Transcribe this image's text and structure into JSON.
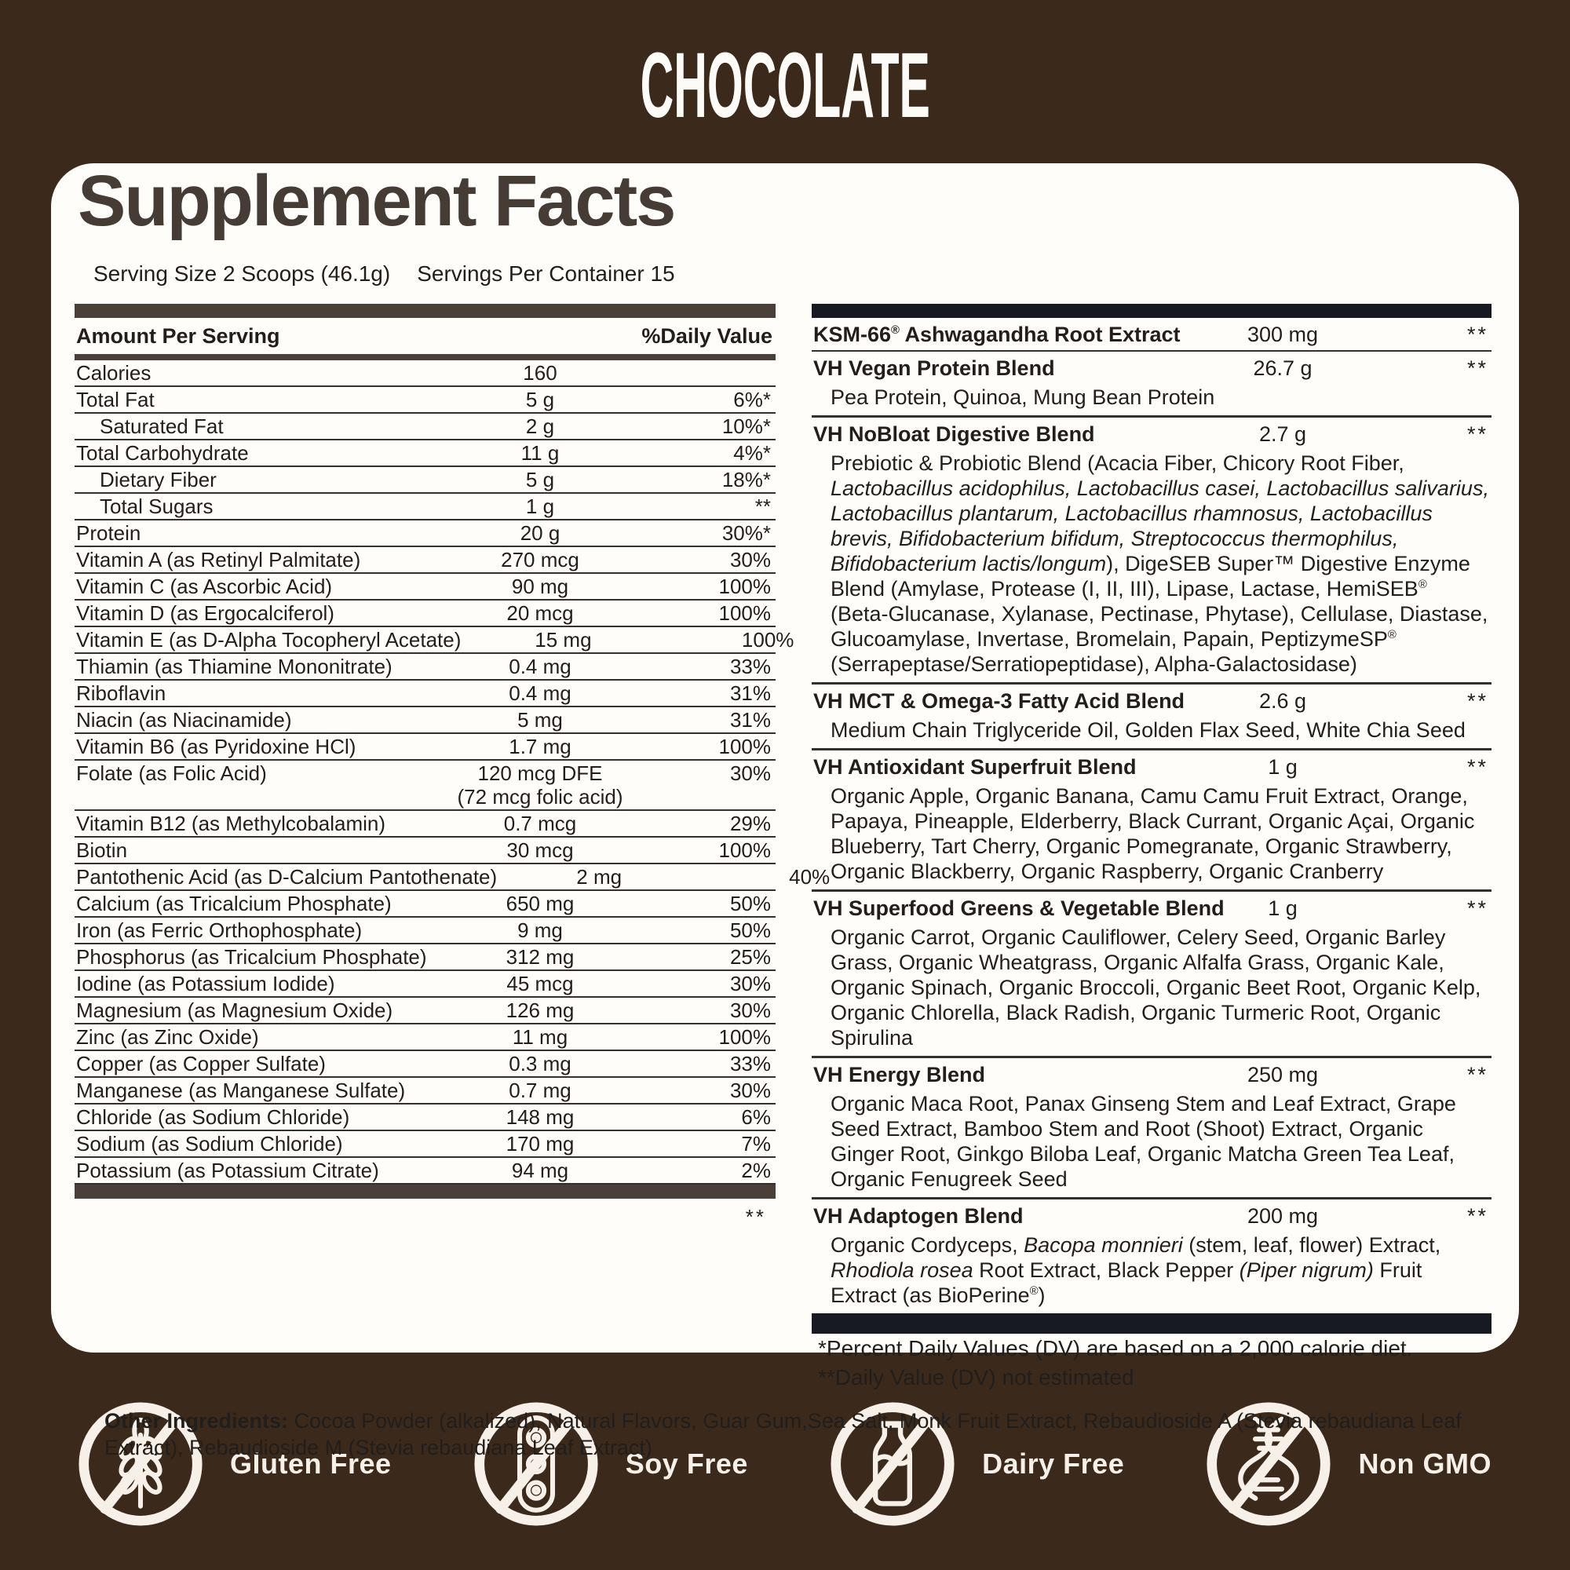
{
  "flavor_title": "CHOCOLATE",
  "colors": {
    "background": "#3b2a1c",
    "card": "#fffdfa",
    "accent_bar": "#4b3f39",
    "dark_bar": "#171b21",
    "text": "#221e1c",
    "cream": "#f6f0e8"
  },
  "panel": {
    "title": "Supplement Facts",
    "serving_size": "Serving Size 2 Scoops (46.1g)",
    "servings_per_container": "Servings Per Container 15",
    "left_table": {
      "header": {
        "amount": "Amount Per Serving",
        "dv": "%Daily Value"
      },
      "rows": [
        {
          "name": "Calories",
          "amount": "160",
          "dv": ""
        },
        {
          "name": "Total Fat",
          "amount": "5 g",
          "dv": "6%*"
        },
        {
          "name": "Saturated Fat",
          "amount": "2 g",
          "dv": "10%*",
          "indent": true
        },
        {
          "name": "Total Carbohydrate",
          "amount": "11 g",
          "dv": "4%*"
        },
        {
          "name": "Dietary Fiber",
          "amount": "5 g",
          "dv": "18%*",
          "indent": true
        },
        {
          "name": "Total Sugars",
          "amount": "1 g",
          "dv": "**",
          "indent": true
        },
        {
          "name": "Protein",
          "amount": "20 g",
          "dv": "30%*"
        },
        {
          "name": "Vitamin A (as Retinyl Palmitate)",
          "amount": "270 mcg",
          "dv": "30%"
        },
        {
          "name": "Vitamin C (as Ascorbic Acid)",
          "amount": "90 mg",
          "dv": "100%"
        },
        {
          "name": "Vitamin D (as Ergocalciferol)",
          "amount": "20 mcg",
          "dv": "100%"
        },
        {
          "name": "Vitamin E (as D-Alpha Tocopheryl Acetate)",
          "amount": "15 mg",
          "dv": "100%"
        },
        {
          "name": "Thiamin (as Thiamine Mononitrate)",
          "amount": "0.4 mg",
          "dv": "33%"
        },
        {
          "name": "Riboflavin",
          "amount": "0.4 mg",
          "dv": "31%"
        },
        {
          "name": "Niacin (as Niacinamide)",
          "amount": "5 mg",
          "dv": "31%"
        },
        {
          "name": "Vitamin B6 (as Pyridoxine HCl)",
          "amount": "1.7 mg",
          "dv": "100%"
        },
        {
          "name": "Folate (as Folic Acid)",
          "amount": "120 mcg DFE",
          "amount2": "(72 mcg folic acid)",
          "dv": "30%"
        },
        {
          "name": "Vitamin B12 (as Methylcobalamin)",
          "amount": "0.7 mcg",
          "dv": "29%"
        },
        {
          "name": "Biotin",
          "amount": "30 mcg",
          "dv": "100%"
        },
        {
          "name": "Pantothenic Acid (as D-Calcium Pantothenate)",
          "amount": "2 mg",
          "dv": "40%"
        },
        {
          "name": "Calcium (as Tricalcium Phosphate)",
          "amount": "650 mg",
          "dv": "50%"
        },
        {
          "name": "Iron (as Ferric Orthophosphate)",
          "amount": "9 mg",
          "dv": "50%"
        },
        {
          "name": "Phosphorus (as Tricalcium Phosphate)",
          "amount": "312 mg",
          "dv": "25%"
        },
        {
          "name": "Iodine (as Potassium Iodide)",
          "amount": "45 mcg",
          "dv": "30%"
        },
        {
          "name": "Magnesium (as Magnesium Oxide)",
          "amount": "126 mg",
          "dv": "30%"
        },
        {
          "name": "Zinc (as Zinc Oxide)",
          "amount": "11 mg",
          "dv": "100%"
        },
        {
          "name": "Copper (as Copper Sulfate)",
          "amount": "0.3 mg",
          "dv": "33%"
        },
        {
          "name": "Manganese (as Manganese Sulfate)",
          "amount": "0.7 mg",
          "dv": "30%"
        },
        {
          "name": "Chloride (as Sodium Chloride)",
          "amount": "148 mg",
          "dv": "6%"
        },
        {
          "name": "Sodium (as Sodium Chloride)",
          "amount": "170 mg",
          "dv": "7%"
        },
        {
          "name": "Potassium (as Potassium Citrate)",
          "amount": "94 mg",
          "dv": "2%"
        }
      ],
      "footnote_marker": "**"
    },
    "right_table": {
      "rows": [
        {
          "name_runs": [
            {
              "t": "KSM-66",
              "b": true
            },
            {
              "t": "®",
              "b": true,
              "sup": true
            },
            {
              "t": " Ashwagandha Root Extract"
            }
          ],
          "amount": "300 mg",
          "dv": "**"
        },
        {
          "name_runs": [
            {
              "t": "VH Vegan Protein Blend",
              "b": true
            }
          ],
          "amount": "26.7 g",
          "dv": "**",
          "desc_runs": [
            {
              "t": "Pea Protein, Quinoa, Mung Bean Protein"
            }
          ]
        },
        {
          "name_runs": [
            {
              "t": "VH NoBloat Digestive Blend",
              "b": true
            }
          ],
          "amount": "2.7 g",
          "dv": "**",
          "desc_runs": [
            {
              "t": "Prebiotic & Probiotic Blend (Acacia Fiber, Chicory Root Fiber, "
            },
            {
              "t": "Lactobacillus acidophilus, Lactobacillus casei, Lactobacillus salivarius, Lactobacillus plantarum, Lactobacillus rhamnosus, Lactobacillus brevis, Bifidobacterium bifidum, Streptococcus thermophilus, Bifidobacterium lactis/longum",
              "i": true
            },
            {
              "t": "), DigeSEB Super"
            },
            {
              "t": "™"
            },
            {
              "t": " Digestive Enzyme Blend (Amylase, Protease (I, II, III), Lipase, Lactase, HemiSEB"
            },
            {
              "t": "®",
              "sup": true
            },
            {
              "t": " (Beta-Glucanase, Xylanase, Pectinase, Phytase), Cellulase, Diastase, Glucoamylase, Invertase, Bromelain, Papain, PeptizymeSP"
            },
            {
              "t": "®",
              "sup": true
            },
            {
              "t": " (Serrapeptase/Serratiopeptidase), Alpha-Galactosidase)"
            }
          ]
        },
        {
          "name_runs": [
            {
              "t": "VH MCT & Omega-3 Fatty Acid Blend",
              "b": true
            }
          ],
          "amount": "2.6 g",
          "dv": "**",
          "desc_runs": [
            {
              "t": "Medium Chain Triglyceride Oil, Golden Flax Seed, White Chia Seed"
            }
          ]
        },
        {
          "name_runs": [
            {
              "t": "VH Antioxidant Superfruit Blend",
              "b": true
            }
          ],
          "amount": "1 g",
          "dv": "**",
          "desc_runs": [
            {
              "t": "Organic Apple, Organic Banana, Camu Camu Fruit Extract, Orange, Papaya, Pineapple, Elderberry, Black Currant, Organic Açai, Organic Blueberry, Tart Cherry, Organic Pomegranate, Organic Strawberry, Organic Blackberry, Organic Raspberry, Organic Cranberry"
            }
          ]
        },
        {
          "name_runs": [
            {
              "t": "VH Superfood Greens & Vegetable Blend",
              "b": true
            }
          ],
          "amount": "1 g",
          "dv": "**",
          "desc_runs": [
            {
              "t": "Organic Carrot, Organic Cauliflower, Celery Seed, Organic Barley Grass, Organic Wheatgrass, Organic Alfalfa Grass, Organic Kale, Organic Spinach, Organic Broccoli, Organic Beet Root, Organic Kelp, Organic Chlorella, Black Radish, Organic Turmeric Root, Organic Spirulina"
            }
          ]
        },
        {
          "name_runs": [
            {
              "t": "VH Energy Blend",
              "b": true
            }
          ],
          "amount": "250 mg",
          "dv": "**",
          "desc_runs": [
            {
              "t": "Organic Maca Root, Panax Ginseng Stem and Leaf Extract, Grape Seed Extract, Bamboo Stem and Root (Shoot) Extract, Organic Ginger Root, Ginkgo Biloba Leaf, Organic Matcha Green Tea Leaf, Organic Fenugreek Seed"
            }
          ]
        },
        {
          "name_runs": [
            {
              "t": "VH Adaptogen Blend",
              "b": true
            }
          ],
          "amount": "200 mg",
          "dv": "**",
          "desc_runs": [
            {
              "t": "Organic Cordyceps, "
            },
            {
              "t": "Bacopa monnieri",
              "i": true
            },
            {
              "t": " (stem, leaf, flower) Extract, "
            },
            {
              "t": "Rhodiola rosea",
              "i": true
            },
            {
              "t": " Root Extract, Black Pepper "
            },
            {
              "t": "(Piper nigrum)",
              "i": true
            },
            {
              "t": " Fruit Extract (as BioPerine"
            },
            {
              "t": "®",
              "sup": true
            },
            {
              "t": ")"
            }
          ]
        }
      ],
      "footnotes": [
        "*Percent Daily Values (DV) are based on a 2,000 calorie diet.",
        "**Daily Value (DV) not estimated"
      ]
    },
    "other_ingredients": {
      "label": "Other Ingredients:",
      "text": " Cocoa Powder (alkalized), Natural Flavors, Guar Gum,Sea Salt, Monk Fruit Extract, Rebaudioside A (Stevia rebaudiana Leaf Extract), Rebaudioside M (Stevia rebaudiana Leaf Extract)"
    }
  },
  "badges": [
    {
      "icon": "wheat-icon",
      "label": "Gluten Free"
    },
    {
      "icon": "soybean-icon",
      "label": "Soy Free"
    },
    {
      "icon": "milk-bottle-icon",
      "label": "Dairy Free"
    },
    {
      "icon": "dna-icon",
      "label": "Non GMO"
    }
  ]
}
